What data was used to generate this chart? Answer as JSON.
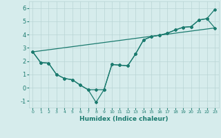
{
  "title": "",
  "xlabel": "Humidex (Indice chaleur)",
  "ylabel": "",
  "bg_color": "#d6ecec",
  "grid_color": "#b8d4d4",
  "line_color": "#1a7a6e",
  "ylim": [
    -1.5,
    6.5
  ],
  "xlim": [
    -0.5,
    23.5
  ],
  "yticks": [
    -1,
    0,
    1,
    2,
    3,
    4,
    5,
    6
  ],
  "xticks": [
    0,
    1,
    2,
    3,
    4,
    5,
    6,
    7,
    8,
    9,
    10,
    11,
    12,
    13,
    14,
    15,
    16,
    17,
    18,
    19,
    20,
    21,
    22,
    23
  ],
  "series1_x": [
    0,
    1,
    2,
    3,
    4,
    5,
    6,
    7,
    8,
    9,
    10,
    11,
    12,
    13,
    14,
    15,
    16,
    17,
    18,
    19,
    20,
    21,
    22,
    23
  ],
  "series1_y": [
    2.7,
    1.9,
    1.85,
    1.0,
    0.7,
    0.6,
    0.2,
    -0.15,
    -0.15,
    -0.15,
    1.75,
    1.7,
    1.65,
    2.55,
    3.6,
    3.85,
    3.95,
    4.1,
    4.35,
    4.55,
    4.6,
    5.1,
    5.2,
    5.9
  ],
  "series2_x": [
    0,
    1,
    2,
    3,
    4,
    5,
    6,
    7,
    8,
    9,
    10,
    11,
    12,
    13,
    14,
    15,
    16,
    17,
    18,
    19,
    20,
    21,
    22,
    23
  ],
  "series2_y": [
    2.7,
    1.9,
    1.85,
    1.0,
    0.7,
    0.6,
    0.2,
    -0.15,
    -1.1,
    -0.15,
    1.75,
    1.7,
    1.65,
    2.55,
    3.6,
    3.85,
    3.95,
    4.1,
    4.35,
    4.55,
    4.6,
    5.1,
    5.2,
    4.5
  ],
  "series3_x": [
    0,
    23
  ],
  "series3_y": [
    2.7,
    4.5
  ],
  "marker": "D",
  "markersize": 2.0,
  "linewidth": 0.9
}
